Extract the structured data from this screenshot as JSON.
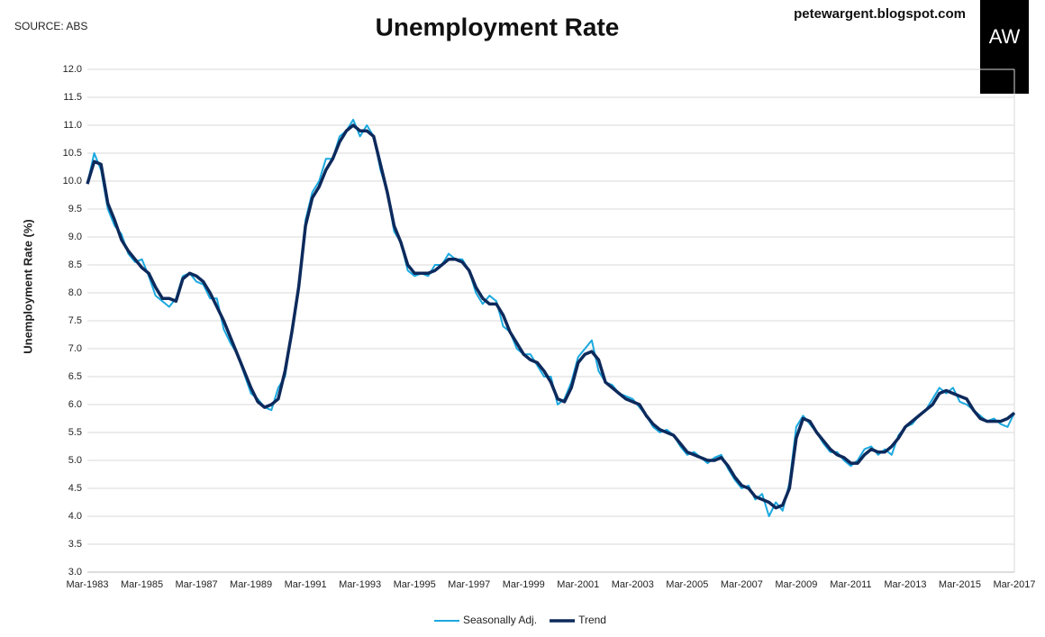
{
  "chart_data": {
    "type": "line",
    "title": "Unemployment Rate",
    "source": "SOURCE: ABS",
    "credit": "petewargent.blogspot.com",
    "logo": "AW",
    "y_label": "Unemployment Rate (%)",
    "x": [
      "Mar-1983",
      "Jun-1983",
      "Sep-1983",
      "Dec-1983",
      "Mar-1984",
      "Jun-1984",
      "Sep-1984",
      "Dec-1984",
      "Mar-1985",
      "Jun-1985",
      "Sep-1985",
      "Dec-1985",
      "Mar-1986",
      "Jun-1986",
      "Sep-1986",
      "Dec-1986",
      "Mar-1987",
      "Jun-1987",
      "Sep-1987",
      "Dec-1987",
      "Mar-1988",
      "Jun-1988",
      "Sep-1988",
      "Dec-1988",
      "Mar-1989",
      "Jun-1989",
      "Sep-1989",
      "Dec-1989",
      "Mar-1990",
      "Jun-1990",
      "Sep-1990",
      "Dec-1990",
      "Mar-1991",
      "Jun-1991",
      "Sep-1991",
      "Dec-1991",
      "Mar-1992",
      "Jun-1992",
      "Sep-1992",
      "Dec-1992",
      "Mar-1993",
      "Jun-1993",
      "Sep-1993",
      "Dec-1993",
      "Mar-1994",
      "Jun-1994",
      "Sep-1994",
      "Dec-1994",
      "Mar-1995",
      "Jun-1995",
      "Sep-1995",
      "Dec-1995",
      "Mar-1996",
      "Jun-1996",
      "Sep-1996",
      "Dec-1996",
      "Mar-1997",
      "Jun-1997",
      "Sep-1997",
      "Dec-1997",
      "Mar-1998",
      "Jun-1998",
      "Sep-1998",
      "Dec-1998",
      "Mar-1999",
      "Jun-1999",
      "Sep-1999",
      "Dec-1999",
      "Mar-2000",
      "Jun-2000",
      "Sep-2000",
      "Dec-2000",
      "Mar-2001",
      "Jun-2001",
      "Sep-2001",
      "Dec-2001",
      "Mar-2002",
      "Jun-2002",
      "Sep-2002",
      "Dec-2002",
      "Mar-2003",
      "Jun-2003",
      "Sep-2003",
      "Dec-2003",
      "Mar-2004",
      "Jun-2004",
      "Sep-2004",
      "Dec-2004",
      "Mar-2005",
      "Jun-2005",
      "Sep-2005",
      "Dec-2005",
      "Mar-2006",
      "Jun-2006",
      "Sep-2006",
      "Dec-2006",
      "Mar-2007",
      "Jun-2007",
      "Sep-2007",
      "Dec-2007",
      "Mar-2008",
      "Jun-2008",
      "Sep-2008",
      "Dec-2008",
      "Mar-2009",
      "Jun-2009",
      "Sep-2009",
      "Dec-2009",
      "Mar-2010",
      "Jun-2010",
      "Sep-2010",
      "Dec-2010",
      "Mar-2011",
      "Jun-2011",
      "Sep-2011",
      "Dec-2011",
      "Mar-2012",
      "Jun-2012",
      "Sep-2012",
      "Dec-2012",
      "Mar-2013",
      "Jun-2013",
      "Sep-2013",
      "Dec-2013",
      "Mar-2014",
      "Jun-2014",
      "Sep-2014",
      "Dec-2014",
      "Mar-2015",
      "Jun-2015",
      "Sep-2015",
      "Dec-2015",
      "Mar-2016",
      "Jun-2016",
      "Sep-2016",
      "Dec-2016",
      "Mar-2017"
    ],
    "series": [
      {
        "name": "Seasonally Adj.",
        "color": "#1ba9e0",
        "width": 2,
        "values": [
          9.95,
          10.5,
          10.2,
          9.5,
          9.2,
          9.05,
          8.7,
          8.55,
          8.6,
          8.3,
          7.95,
          7.85,
          7.75,
          7.9,
          8.3,
          8.35,
          8.2,
          8.15,
          7.9,
          7.9,
          7.35,
          7.1,
          6.9,
          6.55,
          6.2,
          6.1,
          5.95,
          5.9,
          6.3,
          6.5,
          7.3,
          8.1,
          9.3,
          9.8,
          10.0,
          10.4,
          10.4,
          10.8,
          10.9,
          11.1,
          10.8,
          11.0,
          10.8,
          10.2,
          9.8,
          9.1,
          8.9,
          8.4,
          8.3,
          8.35,
          8.3,
          8.5,
          8.5,
          8.7,
          8.6,
          8.6,
          8.4,
          8.0,
          7.8,
          7.95,
          7.85,
          7.4,
          7.3,
          7.0,
          6.9,
          6.9,
          6.7,
          6.5,
          6.5,
          6.0,
          6.1,
          6.4,
          6.85,
          7.0,
          7.15,
          6.6,
          6.4,
          6.35,
          6.2,
          6.15,
          6.1,
          5.95,
          5.8,
          5.6,
          5.5,
          5.55,
          5.45,
          5.25,
          5.1,
          5.15,
          5.05,
          4.95,
          5.05,
          5.1,
          4.85,
          4.65,
          4.5,
          4.55,
          4.3,
          4.4,
          4.0,
          4.25,
          4.1,
          4.6,
          5.6,
          5.8,
          5.65,
          5.5,
          5.3,
          5.15,
          5.15,
          5.0,
          4.9,
          5.0,
          5.2,
          5.25,
          5.1,
          5.2,
          5.1,
          5.45,
          5.6,
          5.65,
          5.8,
          5.9,
          6.1,
          6.3,
          6.2,
          6.3,
          6.05,
          6.0,
          5.9,
          5.8,
          5.7,
          5.75,
          5.65,
          5.6,
          5.85
        ]
      },
      {
        "name": "Trend",
        "color": "#0d2a5c",
        "width": 3.5,
        "values": [
          9.95,
          10.35,
          10.3,
          9.6,
          9.3,
          8.95,
          8.75,
          8.6,
          8.45,
          8.35,
          8.1,
          7.9,
          7.9,
          7.85,
          8.25,
          8.35,
          8.3,
          8.2,
          8.0,
          7.75,
          7.5,
          7.2,
          6.9,
          6.6,
          6.3,
          6.05,
          5.95,
          6.0,
          6.1,
          6.6,
          7.3,
          8.1,
          9.2,
          9.7,
          9.9,
          10.2,
          10.4,
          10.7,
          10.9,
          11.0,
          10.9,
          10.9,
          10.8,
          10.3,
          9.8,
          9.2,
          8.9,
          8.5,
          8.35,
          8.35,
          8.35,
          8.4,
          8.5,
          8.6,
          8.6,
          8.55,
          8.4,
          8.1,
          7.9,
          7.8,
          7.8,
          7.6,
          7.3,
          7.1,
          6.9,
          6.8,
          6.75,
          6.6,
          6.4,
          6.1,
          6.05,
          6.3,
          6.75,
          6.9,
          6.95,
          6.8,
          6.4,
          6.3,
          6.2,
          6.1,
          6.05,
          6.0,
          5.8,
          5.65,
          5.55,
          5.5,
          5.45,
          5.3,
          5.15,
          5.1,
          5.05,
          5.0,
          5.0,
          5.05,
          4.9,
          4.7,
          4.55,
          4.5,
          4.35,
          4.3,
          4.25,
          4.15,
          4.2,
          4.5,
          5.4,
          5.75,
          5.7,
          5.5,
          5.35,
          5.2,
          5.1,
          5.05,
          4.95,
          4.95,
          5.1,
          5.2,
          5.15,
          5.15,
          5.25,
          5.4,
          5.6,
          5.7,
          5.8,
          5.9,
          6.0,
          6.2,
          6.25,
          6.2,
          6.15,
          6.1,
          5.9,
          5.75,
          5.7,
          5.7,
          5.7,
          5.75,
          5.85
        ]
      }
    ],
    "ylim": [
      3,
      12
    ],
    "yticks": [
      {
        "value": 3,
        "label": "3.0"
      },
      3.5,
      {
        "value": 4,
        "label": "4.0"
      },
      4.5,
      {
        "value": 5,
        "label": "5.0"
      },
      5.5,
      {
        "value": 6,
        "label": "6.0"
      },
      6.5,
      {
        "value": 7,
        "label": "7.0"
      },
      7.5,
      {
        "value": 8,
        "label": "8.0"
      },
      8.5,
      {
        "value": 9,
        "label": "9.0"
      },
      9.5,
      {
        "value": 10,
        "label": "10.0"
      },
      10.5,
      {
        "value": 11,
        "label": "11.0"
      },
      11.5,
      {
        "value": 12,
        "label": "12.0"
      }
    ],
    "x_label_every": 8,
    "grid": true,
    "legend": "bottom"
  }
}
